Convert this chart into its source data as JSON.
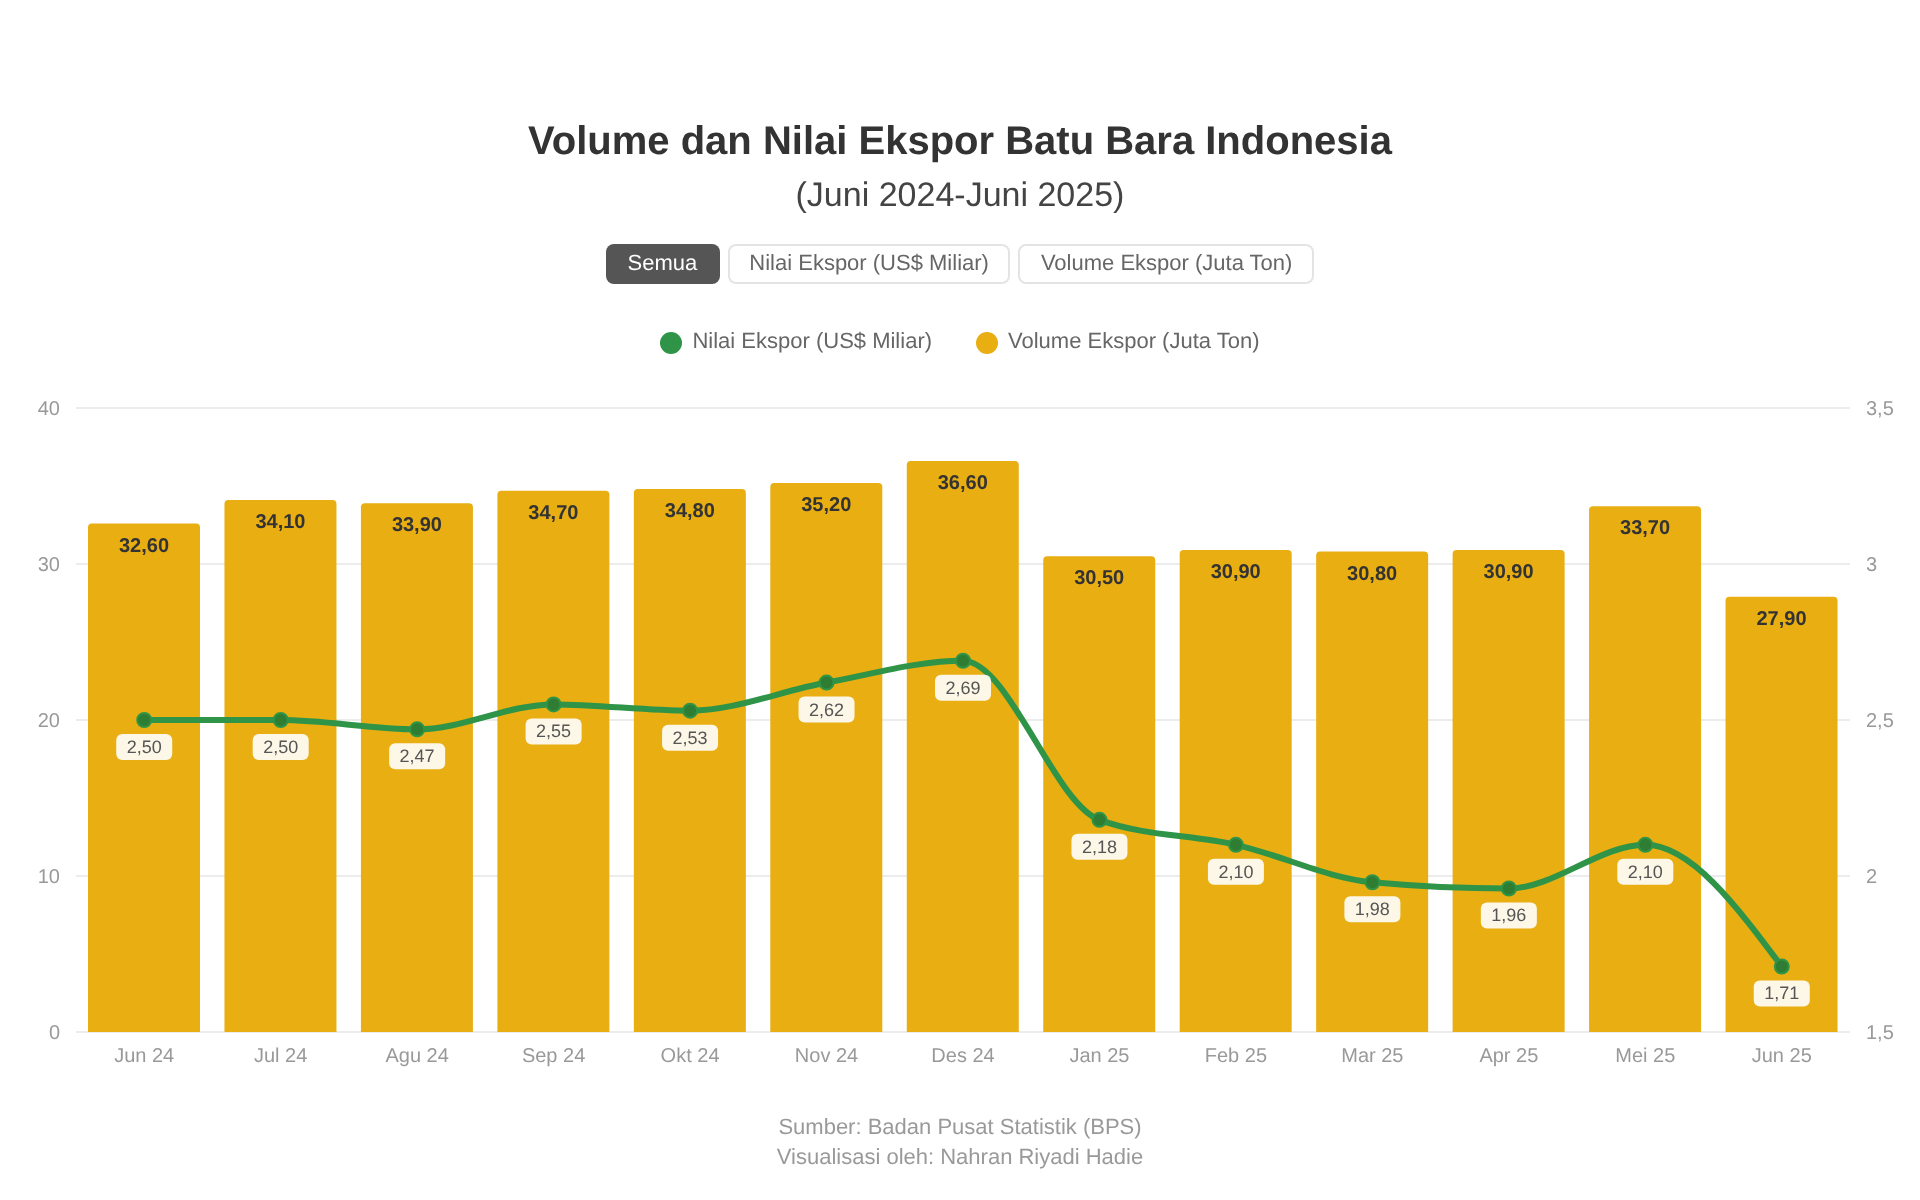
{
  "chart_data": {
    "type": "bar",
    "title": "Volume dan Nilai Ekspor Batu Bara Indonesia",
    "subtitle": "(Juni 2024-Juni 2025)",
    "categories": [
      "Jun 24",
      "Jul 24",
      "Agu 24",
      "Sep 24",
      "Okt 24",
      "Nov 24",
      "Des 24",
      "Jan 25",
      "Feb 25",
      "Mar 25",
      "Apr 25",
      "Mei 25",
      "Jun 25"
    ],
    "series": [
      {
        "name": "Nilai Ekspor (US$ Miliar)",
        "type": "line",
        "axis": "y2",
        "color": "#2f9447",
        "values": [
          2.5,
          2.5,
          2.47,
          2.55,
          2.53,
          2.62,
          2.69,
          2.18,
          2.1,
          1.98,
          1.96,
          2.1,
          1.71
        ],
        "value_labels": [
          "2,50",
          "2,50",
          "2,47",
          "2,55",
          "2,53",
          "2,62",
          "2,69",
          "2,18",
          "2,10",
          "1,98",
          "1,96",
          "2,10",
          "1,71"
        ]
      },
      {
        "name": "Volume Ekspor (Juta Ton)",
        "color": "#e8ae12",
        "values": [
          32.6,
          34.1,
          33.9,
          34.7,
          34.8,
          35.2,
          36.6,
          30.5,
          30.9,
          30.8,
          30.9,
          33.7,
          27.9
        ],
        "value_labels": [
          "32,60",
          "34,10",
          "33,90",
          "34,70",
          "34,80",
          "35,20",
          "36,60",
          "30,50",
          "30,90",
          "30,80",
          "30,90",
          "33,70",
          "27,90"
        ]
      }
    ],
    "ylim": [
      0,
      40
    ],
    "yticks": [
      0,
      10,
      20,
      30,
      40
    ],
    "y2lim": [
      1.5,
      3.5
    ],
    "y2ticks": [
      {
        "value": 1.5,
        "label": "1,5"
      },
      {
        "value": 2,
        "label": "2"
      },
      {
        "value": 2.5,
        "label": "2,5"
      },
      {
        "value": 3,
        "label": "3"
      },
      {
        "value": 3.5,
        "label": "3,5"
      }
    ],
    "grid": "y",
    "legend": "top",
    "marker": "circle",
    "line_style": "solid",
    "annotations": [
      "Semua",
      "Sumber: Badan Pusat Statistik (BPS)",
      "Visualisasi oleh: Nahran Riyadi Hadie"
    ]
  }
}
